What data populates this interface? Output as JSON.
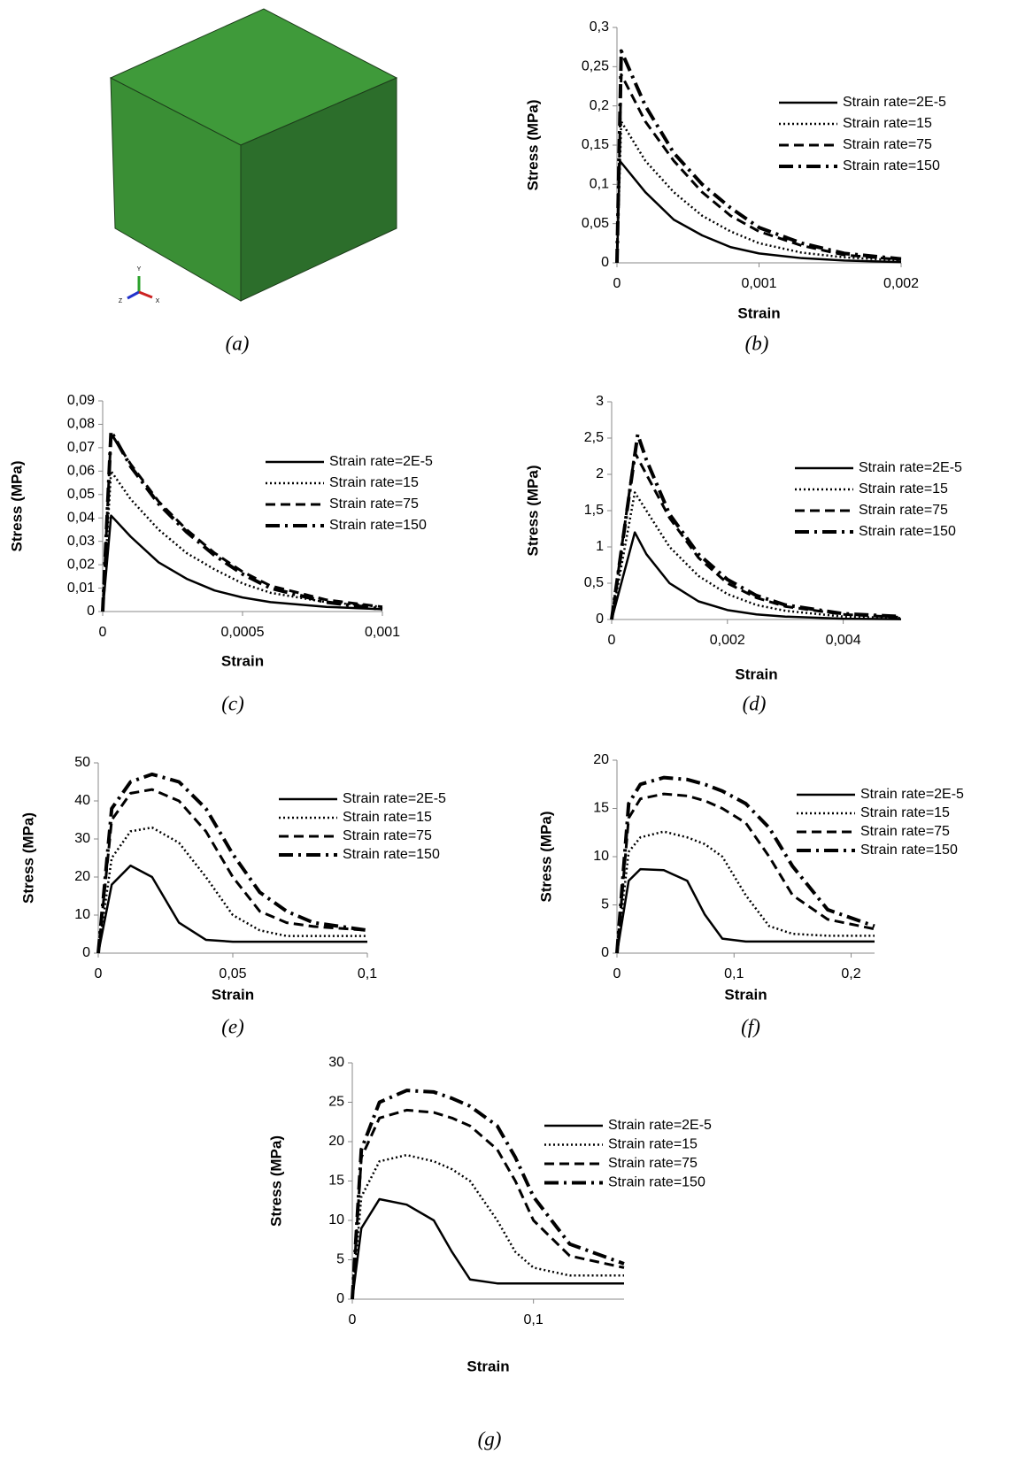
{
  "cube": {
    "caption": "(a)",
    "axis_labels": [
      "Y",
      "Z",
      "X"
    ]
  },
  "chart_data": [
    {
      "type": "line",
      "caption": "(b)",
      "x_label": "Strain",
      "y_label": "Stress (MPa)",
      "xlim": [
        0,
        0.002
      ],
      "xticks": [
        0,
        {
          "value": 0.001,
          "label": "0,001"
        },
        {
          "value": 0.002,
          "label": "0,002"
        }
      ],
      "ylim": [
        0,
        0.3
      ],
      "yticks": [
        0,
        {
          "value": 0.05,
          "label": "0,05"
        },
        {
          "value": 0.1,
          "label": "0,1"
        },
        {
          "value": 0.15,
          "label": "0,15"
        },
        {
          "value": 0.2,
          "label": "0,2"
        },
        {
          "value": 0.25,
          "label": "0,25"
        },
        {
          "value": 0.3,
          "label": "0,3"
        }
      ],
      "series": [
        {
          "name": "Strain rate=2E-5",
          "color": "#000000",
          "dash": "solid",
          "x": [
            0,
            2e-05,
            0.0002,
            0.0004,
            0.0006,
            0.0008,
            0.001,
            0.0013,
            0.0016,
            0.002
          ],
          "values": [
            0,
            0.13,
            0.09,
            0.055,
            0.035,
            0.02,
            0.012,
            0.006,
            0.003,
            0.001
          ]
        },
        {
          "name": "Strain rate=15",
          "color": "#000000",
          "dash": "dotted",
          "x": [
            0,
            3e-05,
            0.0002,
            0.0004,
            0.0006,
            0.0008,
            0.001,
            0.0013,
            0.0016,
            0.002
          ],
          "values": [
            0,
            0.18,
            0.13,
            0.09,
            0.06,
            0.04,
            0.025,
            0.013,
            0.007,
            0.003
          ]
        },
        {
          "name": "Strain rate=75",
          "color": "#000000",
          "dash": "dashed",
          "x": [
            0,
            3e-05,
            0.0002,
            0.0004,
            0.0006,
            0.0008,
            0.001,
            0.0013,
            0.0016,
            0.002
          ],
          "values": [
            0,
            0.24,
            0.18,
            0.13,
            0.09,
            0.06,
            0.04,
            0.022,
            0.01,
            0.004
          ]
        },
        {
          "name": "Strain rate=150",
          "color": "#000000",
          "dash": "dashdot",
          "x": [
            0,
            3e-05,
            0.0002,
            0.0004,
            0.0006,
            0.0008,
            0.001,
            0.0013,
            0.0016,
            0.002
          ],
          "values": [
            0,
            0.27,
            0.2,
            0.14,
            0.1,
            0.07,
            0.045,
            0.025,
            0.012,
            0.005
          ]
        }
      ]
    },
    {
      "type": "line",
      "caption": "(c)",
      "x_label": "Strain",
      "y_label": "Stress (MPa)",
      "xlim": [
        0,
        0.001
      ],
      "xticks": [
        0,
        {
          "value": 0.0005,
          "label": "0,0005"
        },
        {
          "value": 0.001,
          "label": "0,001"
        }
      ],
      "ylim": [
        0,
        0.09
      ],
      "yticks": [
        0,
        {
          "value": 0.01,
          "label": "0,01"
        },
        {
          "value": 0.02,
          "label": "0,02"
        },
        {
          "value": 0.03,
          "label": "0,03"
        },
        {
          "value": 0.04,
          "label": "0,04"
        },
        {
          "value": 0.05,
          "label": "0,05"
        },
        {
          "value": 0.06,
          "label": "0,06"
        },
        {
          "value": 0.07,
          "label": "0,07"
        },
        {
          "value": 0.08,
          "label": "0,08"
        },
        {
          "value": 0.09,
          "label": "0,09"
        }
      ],
      "series": [
        {
          "name": "Strain rate=2E-5",
          "color": "#000000",
          "dash": "solid",
          "x": [
            0,
            3e-05,
            0.0001,
            0.0002,
            0.0003,
            0.0004,
            0.0005,
            0.0006,
            0.0008,
            0.001
          ],
          "values": [
            0,
            0.041,
            0.032,
            0.021,
            0.014,
            0.009,
            0.006,
            0.004,
            0.002,
            0.001
          ]
        },
        {
          "name": "Strain rate=15",
          "color": "#000000",
          "dash": "dotted",
          "x": [
            0,
            3e-05,
            0.0001,
            0.0002,
            0.0003,
            0.0004,
            0.0005,
            0.0006,
            0.0008,
            0.001
          ],
          "values": [
            0,
            0.06,
            0.048,
            0.035,
            0.025,
            0.018,
            0.012,
            0.008,
            0.004,
            0.002
          ]
        },
        {
          "name": "Strain rate=75",
          "color": "#000000",
          "dash": "dashed",
          "x": [
            0,
            3e-05,
            0.0001,
            0.0002,
            0.0003,
            0.0004,
            0.0005,
            0.0006,
            0.0008,
            0.001
          ],
          "values": [
            0,
            0.076,
            0.063,
            0.047,
            0.035,
            0.025,
            0.017,
            0.011,
            0.005,
            0.002
          ]
        },
        {
          "name": "Strain rate=150",
          "color": "#000000",
          "dash": "dashdot",
          "x": [
            0,
            3e-05,
            0.0001,
            0.0002,
            0.0003,
            0.0004,
            0.0005,
            0.0006,
            0.0008,
            0.001
          ],
          "values": [
            0,
            0.077,
            0.062,
            0.046,
            0.034,
            0.024,
            0.016,
            0.01,
            0.004,
            0.001
          ]
        }
      ]
    },
    {
      "type": "line",
      "caption": "(d)",
      "x_label": "Strain",
      "y_label": "Stress (MPa)",
      "xlim": [
        0,
        0.005
      ],
      "xticks": [
        0,
        {
          "value": 0.002,
          "label": "0,002"
        },
        {
          "value": 0.004,
          "label": "0,004"
        }
      ],
      "ylim": [
        0,
        3
      ],
      "yticks": [
        0,
        {
          "value": 0.5,
          "label": "0,5"
        },
        1,
        {
          "value": 1.5,
          "label": "1,5"
        },
        2,
        {
          "value": 2.5,
          "label": "2,5"
        },
        3
      ],
      "series": [
        {
          "name": "Strain rate=2E-5",
          "color": "#000000",
          "dash": "solid",
          "x": [
            0,
            0.0004,
            0.0006,
            0.001,
            0.0015,
            0.002,
            0.0025,
            0.003,
            0.004,
            0.005
          ],
          "values": [
            0,
            1.2,
            0.9,
            0.5,
            0.25,
            0.13,
            0.07,
            0.04,
            0.01,
            0.005
          ]
        },
        {
          "name": "Strain rate=15",
          "color": "#000000",
          "dash": "dotted",
          "x": [
            0,
            0.0004,
            0.0006,
            0.001,
            0.0015,
            0.002,
            0.0025,
            0.003,
            0.004,
            0.005
          ],
          "values": [
            0,
            1.75,
            1.5,
            1.0,
            0.6,
            0.35,
            0.2,
            0.12,
            0.04,
            0.02
          ]
        },
        {
          "name": "Strain rate=75",
          "color": "#000000",
          "dash": "dashed",
          "x": [
            0,
            0.0004,
            0.0006,
            0.001,
            0.0015,
            0.002,
            0.0025,
            0.003,
            0.004,
            0.005
          ],
          "values": [
            0,
            2.3,
            2.0,
            1.4,
            0.85,
            0.5,
            0.3,
            0.18,
            0.07,
            0.03
          ]
        },
        {
          "name": "Strain rate=150",
          "color": "#000000",
          "dash": "dashdot",
          "x": [
            0,
            0.00045,
            0.0006,
            0.001,
            0.0015,
            0.002,
            0.0025,
            0.003,
            0.004,
            0.005
          ],
          "values": [
            0,
            2.55,
            2.2,
            1.45,
            0.9,
            0.55,
            0.33,
            0.2,
            0.08,
            0.04
          ]
        }
      ]
    },
    {
      "type": "line",
      "caption": "(e)",
      "x_label": "Strain",
      "y_label": "Stress (MPa)",
      "xlim": [
        0,
        0.1
      ],
      "xticks": [
        0,
        {
          "value": 0.05,
          "label": "0,05"
        },
        {
          "value": 0.1,
          "label": "0,1"
        }
      ],
      "ylim": [
        0,
        50
      ],
      "yticks": [
        0,
        10,
        20,
        30,
        40,
        50
      ],
      "series": [
        {
          "name": "Strain rate=2E-5",
          "color": "#000000",
          "dash": "solid",
          "x": [
            0,
            0.005,
            0.012,
            0.02,
            0.03,
            0.04,
            0.05,
            0.06,
            0.07,
            0.08,
            0.1
          ],
          "values": [
            0,
            18,
            23,
            20,
            8,
            3.5,
            3,
            3,
            3,
            3,
            3
          ]
        },
        {
          "name": "Strain rate=15",
          "color": "#000000",
          "dash": "dotted",
          "x": [
            0,
            0.005,
            0.012,
            0.02,
            0.03,
            0.04,
            0.05,
            0.06,
            0.07,
            0.08,
            0.1
          ],
          "values": [
            0,
            25,
            32,
            33,
            29,
            20,
            10,
            6,
            4.5,
            4.5,
            4.5
          ]
        },
        {
          "name": "Strain rate=75",
          "color": "#000000",
          "dash": "dashed",
          "x": [
            0,
            0.005,
            0.012,
            0.02,
            0.03,
            0.04,
            0.05,
            0.06,
            0.07,
            0.08,
            0.1
          ],
          "values": [
            0,
            35,
            42,
            43,
            40,
            32,
            20,
            11,
            8,
            7,
            6
          ]
        },
        {
          "name": "Strain rate=150",
          "color": "#000000",
          "dash": "dashdot",
          "x": [
            0,
            0.005,
            0.012,
            0.02,
            0.03,
            0.04,
            0.05,
            0.06,
            0.07,
            0.08,
            0.1
          ],
          "values": [
            0,
            38,
            45,
            47,
            45,
            38,
            26,
            16,
            11,
            8,
            6
          ]
        }
      ]
    },
    {
      "type": "line",
      "caption": "(f)",
      "x_label": "Strain",
      "y_label": "Stress (MPa)",
      "xlim": [
        0,
        0.22
      ],
      "xticks": [
        0,
        {
          "value": 0.1,
          "label": "0,1"
        },
        {
          "value": 0.2,
          "label": "0,2"
        }
      ],
      "ylim": [
        0,
        20
      ],
      "yticks": [
        0,
        5,
        10,
        15,
        20
      ],
      "series": [
        {
          "name": "Strain rate=2E-5",
          "color": "#000000",
          "dash": "solid",
          "x": [
            0,
            0.01,
            0.02,
            0.04,
            0.06,
            0.075,
            0.09,
            0.11,
            0.13,
            0.15,
            0.18,
            0.22
          ],
          "values": [
            0,
            7.5,
            8.7,
            8.6,
            7.5,
            4,
            1.5,
            1.2,
            1.2,
            1.2,
            1.2,
            1.2
          ]
        },
        {
          "name": "Strain rate=15",
          "color": "#000000",
          "dash": "dotted",
          "x": [
            0,
            0.01,
            0.02,
            0.04,
            0.06,
            0.075,
            0.09,
            0.11,
            0.13,
            0.15,
            0.18,
            0.22
          ],
          "values": [
            0,
            10.5,
            12,
            12.6,
            12,
            11.3,
            10,
            6,
            2.8,
            2,
            1.8,
            1.8
          ]
        },
        {
          "name": "Strain rate=75",
          "color": "#000000",
          "dash": "dashed",
          "x": [
            0,
            0.01,
            0.02,
            0.04,
            0.06,
            0.075,
            0.09,
            0.11,
            0.13,
            0.15,
            0.18,
            0.22
          ],
          "values": [
            0,
            14,
            16,
            16.5,
            16.3,
            15.8,
            15,
            13.5,
            10,
            6,
            3.5,
            2.5
          ]
        },
        {
          "name": "Strain rate=150",
          "color": "#000000",
          "dash": "dashdot",
          "x": [
            0,
            0.01,
            0.02,
            0.04,
            0.06,
            0.075,
            0.09,
            0.11,
            0.13,
            0.15,
            0.18,
            0.22
          ],
          "values": [
            0,
            15.5,
            17.5,
            18.2,
            18,
            17.5,
            16.8,
            15.5,
            13,
            9,
            4.5,
            2.8
          ]
        }
      ]
    },
    {
      "type": "line",
      "caption": "(g)",
      "x_label": "Strain",
      "y_label": "Stress (MPa)",
      "xlim": [
        0,
        0.15
      ],
      "xticks": [
        0,
        {
          "value": 0.1,
          "label": "0,1"
        }
      ],
      "ylim": [
        0,
        30
      ],
      "yticks": [
        0,
        5,
        10,
        15,
        20,
        25,
        30
      ],
      "series": [
        {
          "name": "Strain rate=2E-5",
          "color": "#000000",
          "dash": "solid",
          "x": [
            0,
            0.005,
            0.015,
            0.03,
            0.045,
            0.055,
            0.065,
            0.08,
            0.09,
            0.1,
            0.12,
            0.15
          ],
          "values": [
            0,
            9,
            12.7,
            12,
            10,
            6,
            2.5,
            2,
            2,
            2,
            2,
            2
          ]
        },
        {
          "name": "Strain rate=15",
          "color": "#000000",
          "dash": "dotted",
          "x": [
            0,
            0.005,
            0.015,
            0.03,
            0.045,
            0.055,
            0.065,
            0.08,
            0.09,
            0.1,
            0.12,
            0.15
          ],
          "values": [
            0,
            13,
            17.5,
            18.3,
            17.5,
            16.5,
            15,
            10,
            6,
            4,
            3,
            3
          ]
        },
        {
          "name": "Strain rate=75",
          "color": "#000000",
          "dash": "dashed",
          "x": [
            0,
            0.005,
            0.015,
            0.03,
            0.045,
            0.055,
            0.065,
            0.08,
            0.09,
            0.1,
            0.12,
            0.15
          ],
          "values": [
            0,
            18,
            23,
            24,
            23.7,
            23,
            22,
            19,
            15,
            10,
            5.5,
            4
          ]
        },
        {
          "name": "Strain rate=150",
          "color": "#000000",
          "dash": "dashdot",
          "x": [
            0,
            0.005,
            0.015,
            0.03,
            0.045,
            0.055,
            0.065,
            0.08,
            0.09,
            0.1,
            0.12,
            0.15
          ],
          "values": [
            0,
            19,
            25,
            26.5,
            26.3,
            25.5,
            24.5,
            22,
            18,
            13,
            7,
            4.5
          ]
        }
      ]
    }
  ]
}
